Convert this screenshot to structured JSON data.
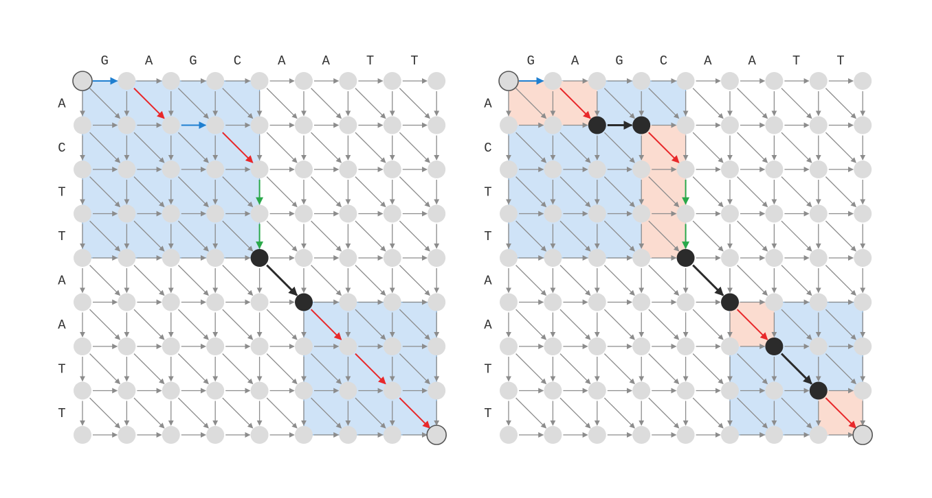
{
  "colors": {
    "grid_edge": "#8c8c8c",
    "node": "#dcdcdc",
    "endpoint_stroke": "#555555",
    "path_node": "#2b2b2b",
    "block_blue": "#cfe3f7",
    "block_blue_stroke": "#7fa8cc",
    "block_salmon": "#fbdcd0",
    "arrow_horizontal": "#1f7fd0",
    "arrow_diagonal": "#e8282a",
    "arrow_vertical": "#2aa84a",
    "arrow_path": "#2b2b2b"
  },
  "top_sequence": [
    "G",
    "A",
    "G",
    "C",
    "A",
    "A",
    "T",
    "T"
  ],
  "left_sequence": [
    "A",
    "C",
    "T",
    "T",
    "A",
    "A",
    "T",
    "T"
  ],
  "panels": [
    {
      "name": "left",
      "blue_blocks": [
        [
          0,
          0,
          4,
          4
        ],
        [
          5,
          5,
          8,
          8
        ]
      ],
      "salmon_blocks": [],
      "colored_edges": [
        {
          "from": [
            0,
            0
          ],
          "to": [
            0,
            1
          ],
          "kind": "horizontal"
        },
        {
          "from": [
            0,
            1
          ],
          "to": [
            1,
            2
          ],
          "kind": "diagonal"
        },
        {
          "from": [
            1,
            2
          ],
          "to": [
            1,
            3
          ],
          "kind": "horizontal"
        },
        {
          "from": [
            1,
            3
          ],
          "to": [
            2,
            4
          ],
          "kind": "diagonal"
        },
        {
          "from": [
            2,
            4
          ],
          "to": [
            3,
            4
          ],
          "kind": "vertical"
        },
        {
          "from": [
            3,
            4
          ],
          "to": [
            4,
            4
          ],
          "kind": "vertical"
        },
        {
          "from": [
            4,
            4
          ],
          "to": [
            5,
            5
          ],
          "kind": "path"
        },
        {
          "from": [
            5,
            5
          ],
          "to": [
            6,
            6
          ],
          "kind": "diagonal"
        },
        {
          "from": [
            6,
            6
          ],
          "to": [
            7,
            7
          ],
          "kind": "diagonal"
        },
        {
          "from": [
            7,
            7
          ],
          "to": [
            8,
            8
          ],
          "kind": "diagonal"
        }
      ],
      "path_nodes": [
        [
          4,
          4
        ],
        [
          5,
          5
        ]
      ]
    },
    {
      "name": "right",
      "blue_blocks": [
        [
          0,
          0,
          4,
          4
        ],
        [
          5,
          5,
          8,
          8
        ]
      ],
      "salmon_blocks": [
        [
          0,
          0,
          1,
          2
        ],
        [
          1,
          3,
          4,
          4
        ],
        [
          5,
          5,
          6,
          6
        ],
        [
          7,
          7,
          8,
          8
        ]
      ],
      "colored_edges": [
        {
          "from": [
            0,
            0
          ],
          "to": [
            0,
            1
          ],
          "kind": "horizontal"
        },
        {
          "from": [
            0,
            1
          ],
          "to": [
            1,
            2
          ],
          "kind": "diagonal"
        },
        {
          "from": [
            1,
            2
          ],
          "to": [
            1,
            3
          ],
          "kind": "path"
        },
        {
          "from": [
            1,
            3
          ],
          "to": [
            2,
            4
          ],
          "kind": "diagonal"
        },
        {
          "from": [
            2,
            4
          ],
          "to": [
            3,
            4
          ],
          "kind": "vertical"
        },
        {
          "from": [
            3,
            4
          ],
          "to": [
            4,
            4
          ],
          "kind": "vertical"
        },
        {
          "from": [
            4,
            4
          ],
          "to": [
            5,
            5
          ],
          "kind": "path"
        },
        {
          "from": [
            5,
            5
          ],
          "to": [
            6,
            6
          ],
          "kind": "diagonal"
        },
        {
          "from": [
            6,
            6
          ],
          "to": [
            7,
            7
          ],
          "kind": "path"
        },
        {
          "from": [
            7,
            7
          ],
          "to": [
            8,
            8
          ],
          "kind": "diagonal"
        }
      ],
      "path_nodes": [
        [
          1,
          2
        ],
        [
          1,
          3
        ],
        [
          4,
          4
        ],
        [
          5,
          5
        ],
        [
          6,
          6
        ],
        [
          7,
          7
        ]
      ]
    }
  ]
}
